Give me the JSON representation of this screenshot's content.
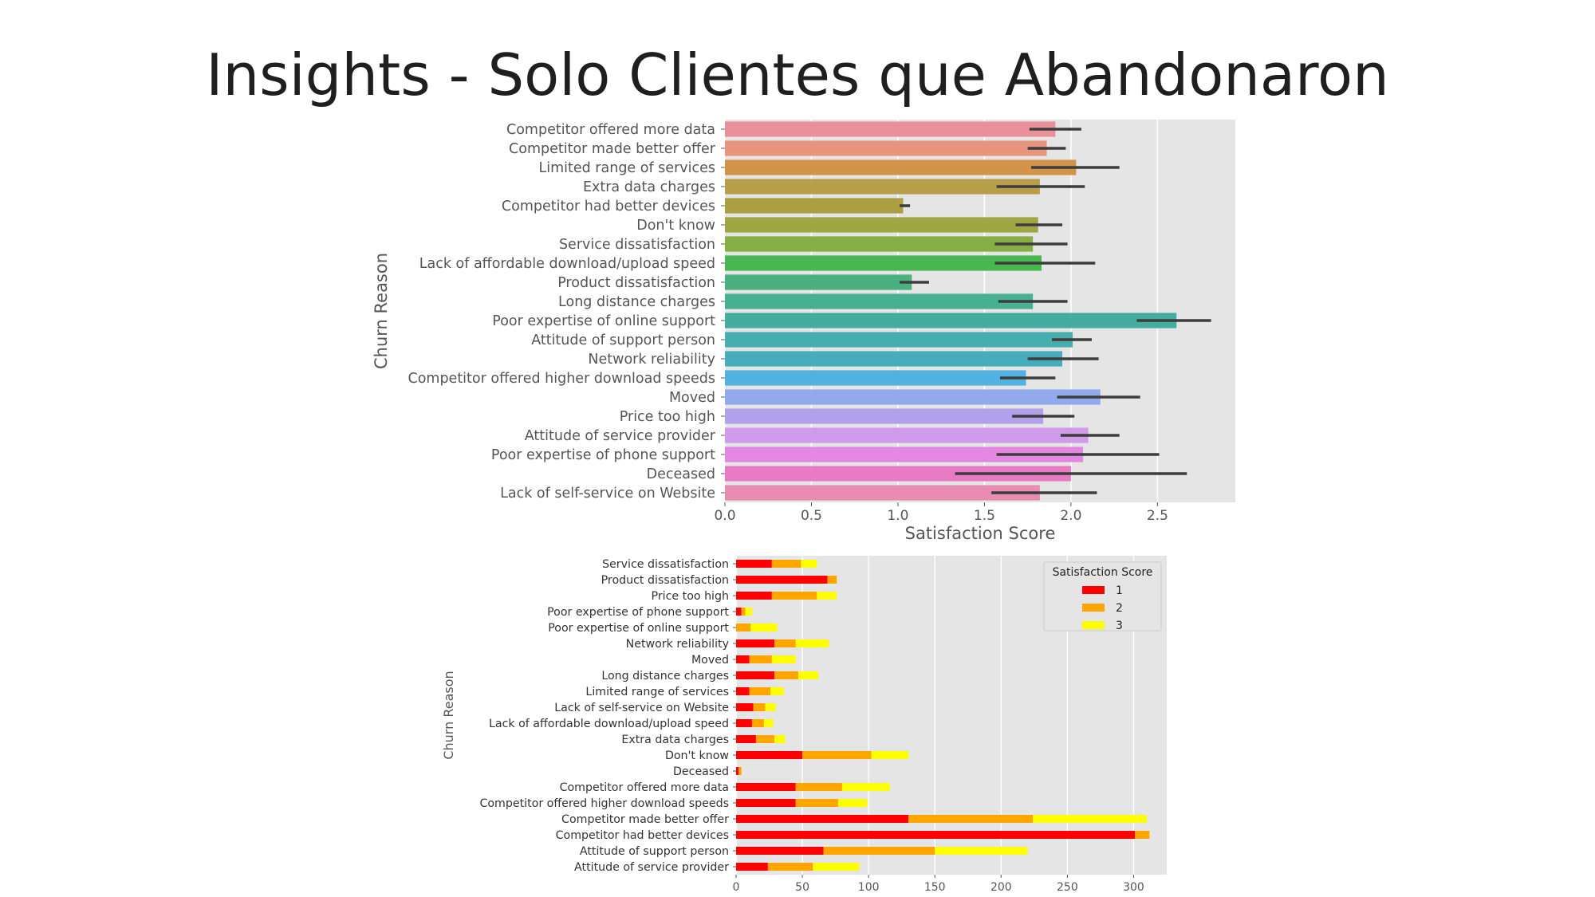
{
  "slide": {
    "title": "Insights - Solo Clientes que Abandonaron"
  },
  "chart_data": [
    {
      "type": "bar",
      "orientation": "horizontal",
      "xlabel": "Satisfaction Score",
      "ylabel": "Churn Reason",
      "xlim": [
        0,
        2.95
      ],
      "xticks": [
        "0.0",
        "0.5",
        "1.0",
        "1.5",
        "2.0",
        "2.5"
      ],
      "grid": true,
      "error_bars": true,
      "categories": [
        "Competitor offered more data",
        "Competitor made better offer",
        "Limited range of services",
        "Extra data charges",
        "Competitor had better devices",
        "Don't know",
        "Service dissatisfaction",
        "Lack of affordable download/upload speed",
        "Product dissatisfaction",
        "Long distance charges",
        "Poor expertise of online support",
        "Attitude of support person",
        "Network reliability",
        "Competitor offered higher download speeds",
        "Moved",
        "Price too high",
        "Attitude of service provider",
        "Poor expertise of phone support",
        "Deceased",
        "Lack of self-service on Website"
      ],
      "values": [
        1.91,
        1.86,
        2.03,
        1.82,
        1.03,
        1.81,
        1.78,
        1.83,
        1.08,
        1.78,
        2.61,
        2.01,
        1.95,
        1.74,
        2.17,
        1.84,
        2.1,
        2.07,
        2.0,
        1.82
      ],
      "ci_low": [
        1.76,
        1.75,
        1.77,
        1.57,
        1.01,
        1.68,
        1.56,
        1.56,
        1.01,
        1.58,
        2.38,
        1.89,
        1.75,
        1.59,
        1.92,
        1.66,
        1.94,
        1.57,
        1.33,
        1.54
      ],
      "ci_high": [
        2.06,
        1.97,
        2.28,
        2.08,
        1.07,
        1.95,
        1.98,
        2.14,
        1.18,
        1.98,
        2.81,
        2.12,
        2.16,
        1.91,
        2.4,
        2.02,
        2.28,
        2.51,
        2.67,
        2.15
      ],
      "colors": [
        "#e8919b",
        "#e8957e",
        "#d19448",
        "#b89e48",
        "#ac9e42",
        "#9ea744",
        "#86ae45",
        "#49b74f",
        "#4bb07f",
        "#46b08f",
        "#45ada0",
        "#46aeac",
        "#47adbc",
        "#52b1e0",
        "#90aaeb",
        "#b1a1ea",
        "#cf9bea",
        "#e586e3",
        "#e87bc4",
        "#e98cb2"
      ]
    },
    {
      "type": "bar",
      "orientation": "horizontal",
      "stacked": true,
      "xlabel": "",
      "ylabel": "Churn Reason",
      "xlim": [
        0,
        325
      ],
      "xticks": [
        "0",
        "50",
        "100",
        "150",
        "200",
        "250",
        "300"
      ],
      "grid": true,
      "legend": {
        "title": "Satisfaction Score",
        "position": "top-right"
      },
      "categories": [
        "Service dissatisfaction",
        "Product dissatisfaction",
        "Price too high",
        "Poor expertise of phone support",
        "Poor expertise of online support",
        "Network reliability",
        "Moved",
        "Long distance charges",
        "Limited range of services",
        "Lack of self-service on Website",
        "Lack of affordable download/upload speed",
        "Extra data charges",
        "Don't know",
        "Deceased",
        "Competitor offered more data",
        "Competitor offered higher download speeds",
        "Competitor made better offer",
        "Competitor had better devices",
        "Attitude of support person",
        "Attitude of service provider"
      ],
      "series": [
        {
          "name": "1",
          "color": "#ff0000",
          "values": [
            27,
            69,
            27,
            4,
            0,
            29,
            10,
            29,
            10,
            13,
            12,
            15,
            50,
            2,
            45,
            45,
            130,
            301,
            66,
            24
          ]
        },
        {
          "name": "2",
          "color": "#ffa500",
          "values": [
            22,
            7,
            34,
            3,
            11,
            16,
            17,
            18,
            16,
            9,
            9,
            14,
            52,
            2,
            35,
            32,
            94,
            11,
            84,
            34
          ]
        },
        {
          "name": "3",
          "color": "#ffff00",
          "values": [
            12,
            0,
            15,
            5,
            20,
            25,
            18,
            15,
            10,
            8,
            7,
            8,
            28,
            0,
            36,
            22,
            86,
            0,
            70,
            35
          ]
        }
      ]
    }
  ]
}
